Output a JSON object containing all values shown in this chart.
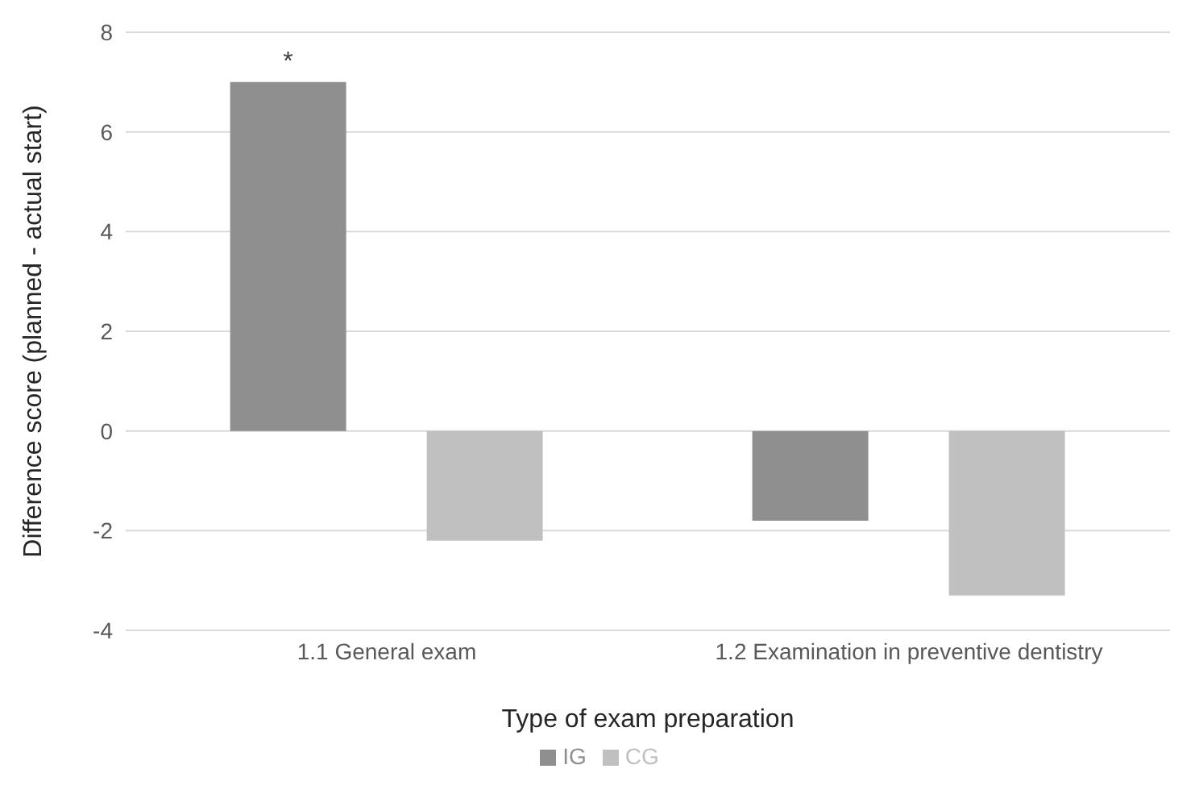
{
  "chart_data": {
    "type": "bar",
    "xlabel": "Type of exam preparation",
    "ylabel": "Difference score (planned - actual start)",
    "categories": [
      "1.1 General exam",
      "1.2 Examination in preventive dentistry"
    ],
    "series": [
      {
        "name": "IG",
        "color": "#8f8f8f",
        "values": [
          7.0,
          -1.8
        ]
      },
      {
        "name": "CG",
        "color": "#c0c0c0",
        "values": [
          -2.2,
          -3.3
        ]
      }
    ],
    "ylim": [
      -4,
      8
    ],
    "yticks": [
      -4,
      -2,
      0,
      2,
      4,
      6,
      8
    ],
    "grid": "y",
    "legend": "bottom",
    "annotations": [
      "*"
    ]
  }
}
